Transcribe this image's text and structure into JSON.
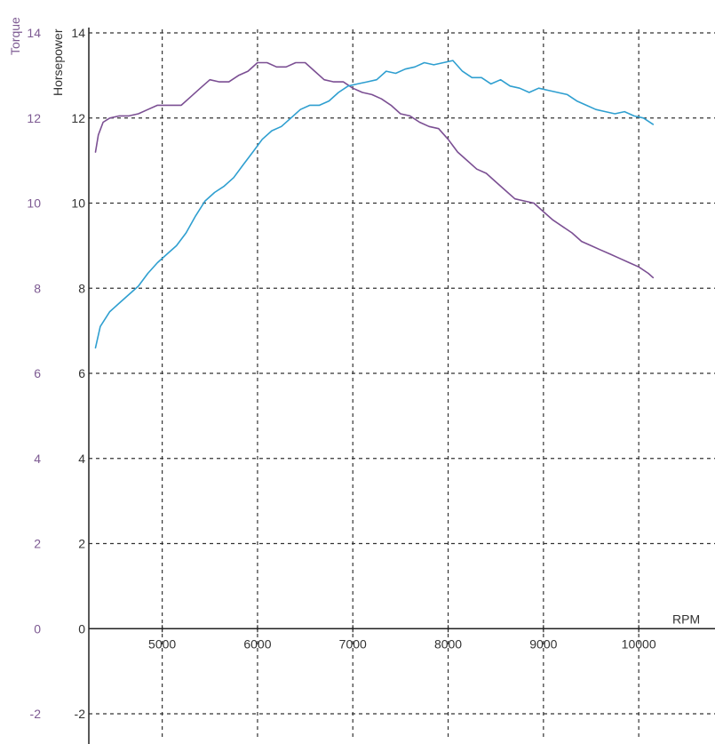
{
  "chart_data": {
    "type": "line",
    "xlabel": "RPM",
    "ylabel_left": "Torque",
    "ylabel_right": "Horsepower",
    "xlim": [
      4300,
      10800
    ],
    "ylim": [
      -2,
      14
    ],
    "x_ticks": [
      "5000",
      "6000",
      "7000",
      "8000",
      "9000",
      "10000"
    ],
    "x_tick_values": [
      5000,
      6000,
      7000,
      8000,
      9000,
      10000
    ],
    "y_ticks": [
      "-2",
      "0",
      "2",
      "4",
      "6",
      "8",
      "10",
      "12",
      "14"
    ],
    "y_tick_values": [
      -2,
      0,
      2,
      4,
      6,
      8,
      10,
      12,
      14
    ],
    "grid": true,
    "grid_style": "dashed",
    "colors": {
      "torque": "#7b4f93",
      "horsepower": "#2f9fd0",
      "axis": "#222222",
      "grid": "#333333",
      "torque_label": "#7d5a92"
    },
    "series": [
      {
        "key": "torque",
        "x": [
          4300,
          4330,
          4380,
          4450,
          4550,
          4650,
          4750,
          4850,
          4950,
          5100,
          5200,
          5300,
          5400,
          5500,
          5600,
          5700,
          5800,
          5900,
          6000,
          6100,
          6200,
          6300,
          6400,
          6500,
          6600,
          6700,
          6800,
          6900,
          7000,
          7100,
          7200,
          7300,
          7400,
          7500,
          7600,
          7700,
          7800,
          7900,
          8000,
          8100,
          8200,
          8300,
          8400,
          8500,
          8600,
          8700,
          8800,
          8900,
          9000,
          9100,
          9200,
          9300,
          9400,
          9500,
          9600,
          9700,
          9800,
          9900,
          10000,
          10100,
          10150
        ],
        "values": [
          11.2,
          11.6,
          11.9,
          12.0,
          12.05,
          12.05,
          12.1,
          12.2,
          12.3,
          12.3,
          12.3,
          12.5,
          12.7,
          12.9,
          12.85,
          12.85,
          13.0,
          13.1,
          13.3,
          13.3,
          13.2,
          13.2,
          13.3,
          13.3,
          13.1,
          12.9,
          12.85,
          12.85,
          12.7,
          12.6,
          12.55,
          12.45,
          12.3,
          12.1,
          12.05,
          11.9,
          11.8,
          11.75,
          11.5,
          11.2,
          11.0,
          10.8,
          10.7,
          10.5,
          10.3,
          10.1,
          10.05,
          10.0,
          9.8,
          9.6,
          9.45,
          9.3,
          9.1,
          9.0,
          8.9,
          8.8,
          8.7,
          8.6,
          8.5,
          8.35,
          8.25
        ]
      },
      {
        "key": "horsepower",
        "x": [
          4300,
          4350,
          4450,
          4550,
          4650,
          4750,
          4850,
          4950,
          5050,
          5150,
          5250,
          5350,
          5450,
          5550,
          5650,
          5750,
          5850,
          5950,
          6050,
          6150,
          6250,
          6350,
          6450,
          6550,
          6650,
          6750,
          6850,
          6950,
          7050,
          7150,
          7250,
          7350,
          7450,
          7550,
          7650,
          7750,
          7850,
          7950,
          8050,
          8150,
          8250,
          8350,
          8450,
          8550,
          8650,
          8750,
          8850,
          8950,
          9050,
          9150,
          9250,
          9350,
          9450,
          9550,
          9650,
          9750,
          9850,
          9950,
          10050,
          10150
        ],
        "values": [
          6.6,
          7.1,
          7.45,
          7.65,
          7.85,
          8.05,
          8.35,
          8.6,
          8.8,
          9.0,
          9.3,
          9.7,
          10.05,
          10.25,
          10.4,
          10.6,
          10.9,
          11.2,
          11.5,
          11.7,
          11.8,
          12.0,
          12.2,
          12.3,
          12.3,
          12.4,
          12.6,
          12.75,
          12.8,
          12.85,
          12.9,
          13.1,
          13.05,
          13.15,
          13.2,
          13.3,
          13.25,
          13.3,
          13.35,
          13.1,
          12.95,
          12.95,
          12.8,
          12.9,
          12.75,
          12.7,
          12.6,
          12.7,
          12.65,
          12.6,
          12.55,
          12.4,
          12.3,
          12.2,
          12.15,
          12.1,
          12.15,
          12.05,
          12.0,
          11.85
        ]
      }
    ]
  }
}
